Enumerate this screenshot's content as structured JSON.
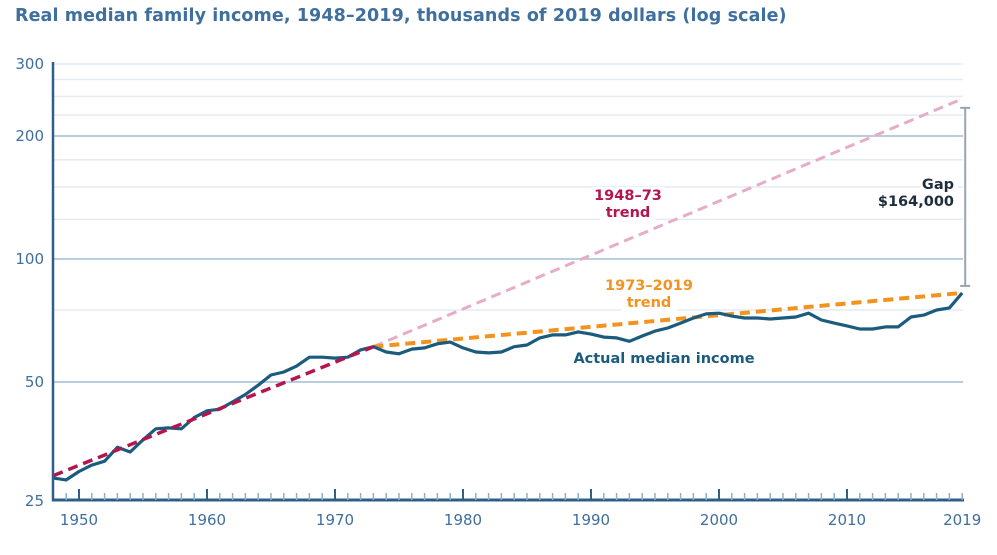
{
  "title": "Real median family income, 1948–2019, thousands of 2019 dollars (log scale)",
  "colors": {
    "title": "#3f6f9c",
    "axis": "#2e5f8a",
    "actual": "#1b5b7e",
    "trend_1948_73": "#b5154f",
    "trend_1948_73_extended": "#e6adc8",
    "trend_1973_2019": "#f2931f",
    "gap_bar": "#9aa4ad",
    "gap_text": "#1f2d3d",
    "major_grid": "#b8cde0",
    "minor_grid": "#e3ebf3"
  },
  "chart_data": {
    "type": "line",
    "title": "Real median family income, 1948–2019, thousands of 2019 dollars (log scale)",
    "xlabel": "",
    "ylabel": "",
    "yscale": "log",
    "xlim": [
      1948,
      2019
    ],
    "ylim": [
      25,
      300
    ],
    "grid": true,
    "y_major_ticks": [
      25,
      50,
      100,
      200,
      300
    ],
    "y_minor_gridlines": [
      75,
      125,
      150,
      175,
      225,
      250,
      275
    ],
    "x_major_ticks": [
      1950,
      1960,
      1970,
      1980,
      1990,
      2000,
      2010,
      2019
    ],
    "x_tick_labels": [
      "1950",
      "1960",
      "1970",
      "1980",
      "1990",
      "2000",
      "2010",
      "2019"
    ],
    "x": [
      1948,
      1949,
      1950,
      1951,
      1952,
      1953,
      1954,
      1955,
      1956,
      1957,
      1958,
      1959,
      1960,
      1961,
      1962,
      1963,
      1964,
      1965,
      1966,
      1967,
      1968,
      1969,
      1970,
      1971,
      1972,
      1973,
      1974,
      1975,
      1976,
      1977,
      1978,
      1979,
      1980,
      1981,
      1982,
      1983,
      1984,
      1985,
      1986,
      1987,
      1988,
      1989,
      1990,
      1991,
      1992,
      1993,
      1994,
      1995,
      1996,
      1997,
      1998,
      1999,
      2000,
      2001,
      2002,
      2003,
      2004,
      2005,
      2006,
      2007,
      2008,
      2009,
      2010,
      2011,
      2012,
      2013,
      2014,
      2015,
      2016,
      2017,
      2018,
      2019
    ],
    "series": [
      {
        "name": "Actual median income",
        "style": "solid",
        "values": [
          29.1,
          28.8,
          30.2,
          31.3,
          32.0,
          34.6,
          33.7,
          36.1,
          38.4,
          38.6,
          38.4,
          40.9,
          42.5,
          42.9,
          44.7,
          46.6,
          49.1,
          52.0,
          52.9,
          54.7,
          57.5,
          57.5,
          57.2,
          57.5,
          59.9,
          61.0,
          59.2,
          58.6,
          60.2,
          60.6,
          62.0,
          62.6,
          60.6,
          59.2,
          58.9,
          59.2,
          61.0,
          61.6,
          64.1,
          65.2,
          65.2,
          66.3,
          65.5,
          64.4,
          64.1,
          62.9,
          64.8,
          66.6,
          67.8,
          69.7,
          71.7,
          73.4,
          73.7,
          72.5,
          71.7,
          71.7,
          71.3,
          71.7,
          72.1,
          73.7,
          70.9,
          69.7,
          68.6,
          67.4,
          67.4,
          68.2,
          68.2,
          72.1,
          72.9,
          75.0,
          75.9,
          82.6
        ]
      },
      {
        "name": "1948–73 trend",
        "style": "dashed",
        "x_range": [
          1948,
          1973
        ],
        "start_value": 29.5,
        "end_value": 61.0
      },
      {
        "name": "1948–73 trend (extended)",
        "style": "dashed-light",
        "x_range": [
          1973,
          2019
        ],
        "start_value": 61.0,
        "end_value": 246.6
      },
      {
        "name": "1973–2019 trend",
        "style": "dashed",
        "x_range": [
          1973,
          2019
        ],
        "start_value": 61.0,
        "end_value": 82.6
      }
    ],
    "annotations": [
      {
        "text": [
          "1948–73",
          "trend"
        ],
        "refers_to": "1948–73 trend"
      },
      {
        "text": [
          "1973–2019",
          "trend"
        ],
        "refers_to": "1973–2019 trend"
      },
      {
        "text": [
          "Actual median income"
        ],
        "refers_to": "Actual median income"
      },
      {
        "text": [
          "Gap",
          "$164,000"
        ],
        "refers_to": "gap in 2019 between 1948–73 trend and actual",
        "from_value": 246.6,
        "to_value": 82.6,
        "year": 2019
      }
    ]
  }
}
